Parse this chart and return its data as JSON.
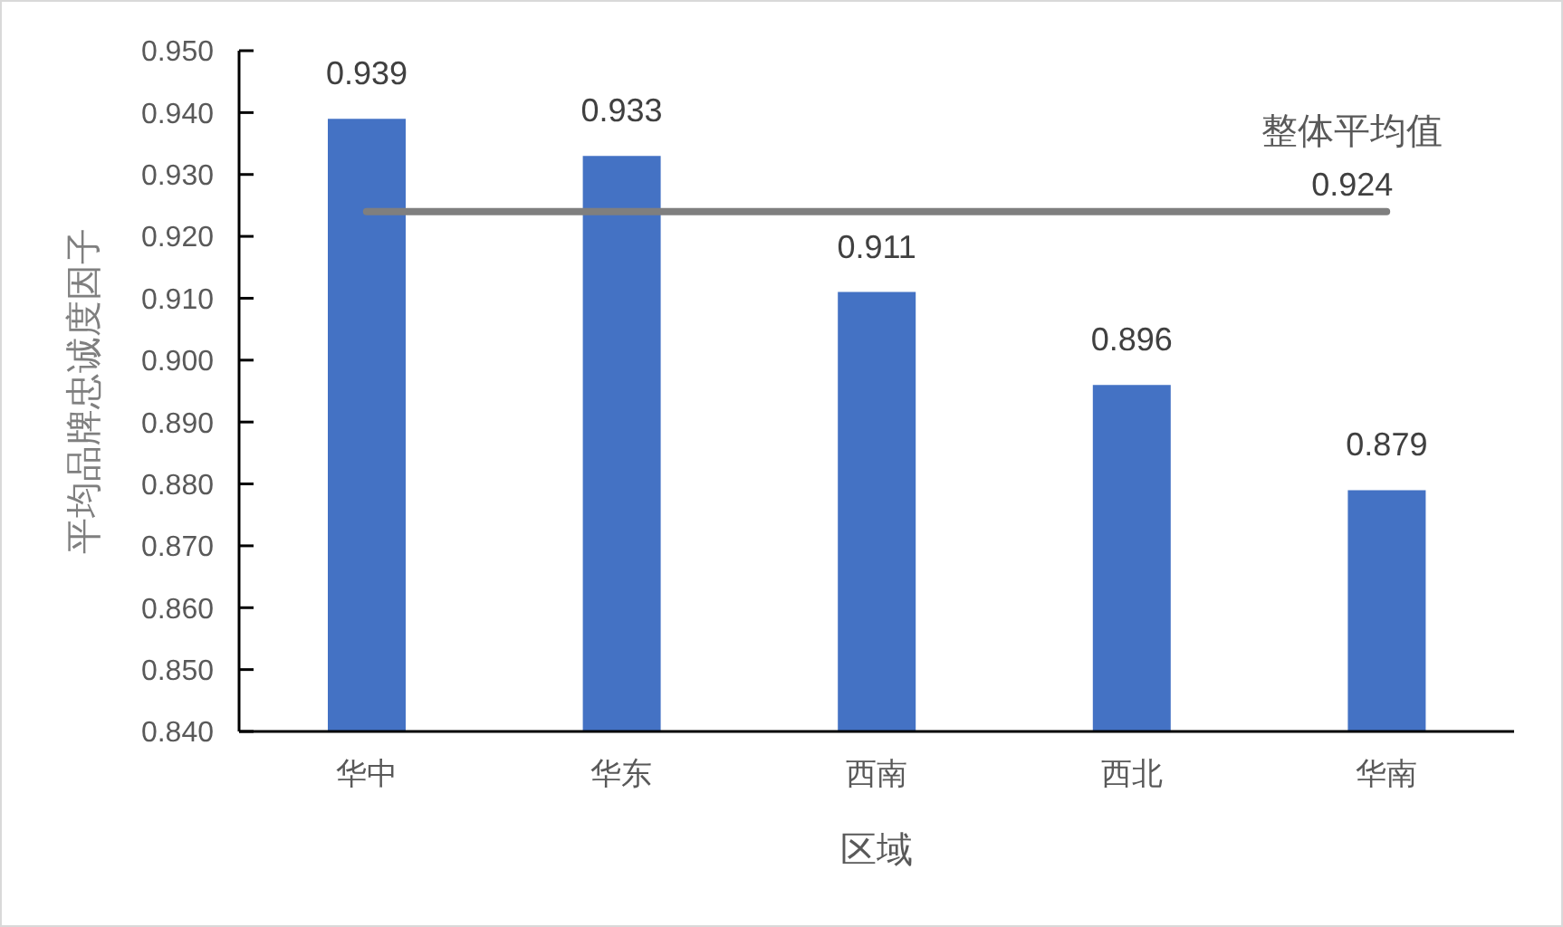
{
  "chart_data": {
    "type": "bar",
    "xlabel": "区域",
    "ylabel": "平均品牌忠诚度因子",
    "categories": [
      "华中",
      "华东",
      "西南",
      "西北",
      "华南"
    ],
    "series": [
      {
        "color": "#4472c4",
        "values": [
          0.939,
          0.933,
          0.911,
          0.896,
          0.879
        ],
        "value_labels": [
          "0.939",
          "0.933",
          "0.911",
          "0.896",
          "0.879"
        ]
      },
      {
        "type": "line",
        "name": "整体平均值",
        "color": "#7f7f7f",
        "values": [
          0.924,
          0.924,
          0.924,
          0.924,
          0.924
        ],
        "value_labels": [
          null,
          null,
          null,
          null,
          "0.924"
        ]
      }
    ],
    "ylim": [
      0.84,
      0.95
    ],
    "yticks": [
      {
        "value": 0.84,
        "label": "0.840"
      },
      {
        "value": 0.85,
        "label": "0.850"
      },
      {
        "value": 0.86,
        "label": "0.860"
      },
      {
        "value": 0.87,
        "label": "0.870"
      },
      {
        "value": 0.88,
        "label": "0.880"
      },
      {
        "value": 0.89,
        "label": "0.890"
      },
      {
        "value": 0.9,
        "label": "0.900"
      },
      {
        "value": 0.91,
        "label": "0.910"
      },
      {
        "value": 0.92,
        "label": "0.920"
      },
      {
        "value": 0.93,
        "label": "0.930"
      },
      {
        "value": 0.94,
        "label": "0.940"
      },
      {
        "value": 0.95,
        "label": "0.950"
      }
    ],
    "marker": "none"
  }
}
